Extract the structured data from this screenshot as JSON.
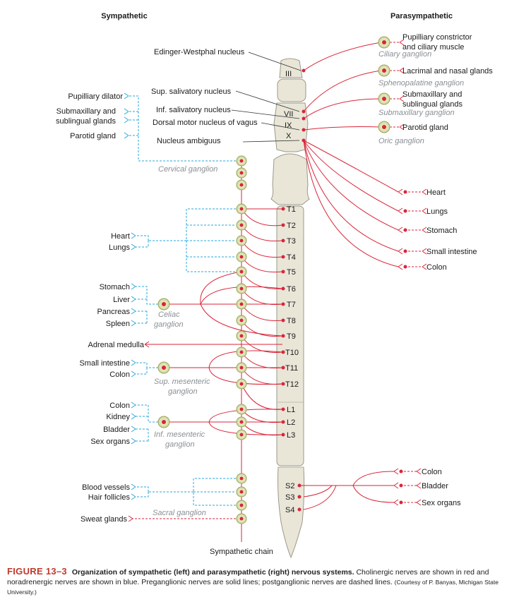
{
  "headers": {
    "sympathetic": "Sympathetic",
    "parasympathetic": "Parasympathetic"
  },
  "brainstem_nuclei": {
    "edinger_westphal": "Edinger-Westphal nucleus",
    "sup_salivatory": "Sup. salivatory nucleus",
    "inf_salivatory": "Inf. salivatory nucleus",
    "dorsal_motor_vagus": "Dorsal motor nucleus of vagus",
    "nucleus_ambiguus": "Nucleus ambiguus"
  },
  "cranial_nerves": [
    "III",
    "VII",
    "IX",
    "X"
  ],
  "spinal_segments": {
    "thoracic": [
      "T1",
      "T2",
      "T3",
      "T4",
      "T5",
      "T6",
      "T7",
      "T8",
      "T9",
      "T10",
      "T11",
      "T12"
    ],
    "lumbar": [
      "L1",
      "L2",
      "L3"
    ],
    "sacral": [
      "S2",
      "S3",
      "S4"
    ]
  },
  "parasympathetic_cranial_targets": [
    {
      "organ_line1": "Pupilliary constrictor",
      "organ_line2": "and ciliary muscle",
      "ganglion": "Ciliary ganglion"
    },
    {
      "organ_line1": "Lacrimal and nasal glands",
      "organ_line2": "",
      "ganglion": "Sphenopalatine ganglion"
    },
    {
      "organ_line1": "Submaxillary and",
      "organ_line2": "sublingual glands",
      "ganglion": "Submaxillary ganglion"
    },
    {
      "organ_line1": "Parotid gland",
      "organ_line2": "",
      "ganglion": "Oric ganglion"
    }
  ],
  "parasympathetic_vagal_targets": [
    "Heart",
    "Lungs",
    "Stomach",
    "Small intestine",
    "Colon"
  ],
  "parasympathetic_sacral_targets": [
    "Colon",
    "Bladder",
    "Sex organs"
  ],
  "sympathetic_head_targets": {
    "pupil": "Pupilliary dilator",
    "submax_line1": "Submaxillary and",
    "submax_line2": "sublingual glands",
    "parotid": "Parotid gland",
    "ganglion": "Cervical ganglion"
  },
  "sympathetic_thoracic_targets": [
    "Heart",
    "Lungs"
  ],
  "celiac": {
    "organs": [
      "Stomach",
      "Liver",
      "Pancreas",
      "Spleen"
    ],
    "ganglion_line1": "Celiac",
    "ganglion_line2": "ganglion"
  },
  "adrenal_medulla": "Adrenal medulla",
  "sup_mesenteric": {
    "organs": [
      "Small intestine",
      "Colon"
    ],
    "ganglion_line1": "Sup. mesenteric",
    "ganglion_line2": "ganglion"
  },
  "inf_mesenteric": {
    "organs": [
      "Colon",
      "Kidney",
      "Bladder",
      "Sex organs"
    ],
    "ganglion_line1": "Inf. mesenteric",
    "ganglion_line2": "ganglion"
  },
  "sacral_sympathetic": {
    "organs": [
      "Blood vessels",
      "Hair follicles"
    ],
    "ganglion": "Sacral ganglion",
    "sweat": "Sweat glands"
  },
  "sympathetic_chain": "Sympathetic chain",
  "caption": {
    "figure": "FIGURE 13–3",
    "title": "Organization of sympathetic (left) and parasympathetic (right) nervous systems.",
    "text": "Cholinergic nerves are shown in red and noradrenergic nerves are shown in blue. Preganglionic nerves are solid lines; postganglionic nerves are dashed lines.",
    "credit": "(Courtesy of P. Banyas, Michigan State University.)"
  },
  "colors": {
    "cholinergic": "#d9263a",
    "noradrenergic": "#2aa7dc",
    "ganglion_fill": "#dfe7b0",
    "bone": "#e9e6d8"
  }
}
